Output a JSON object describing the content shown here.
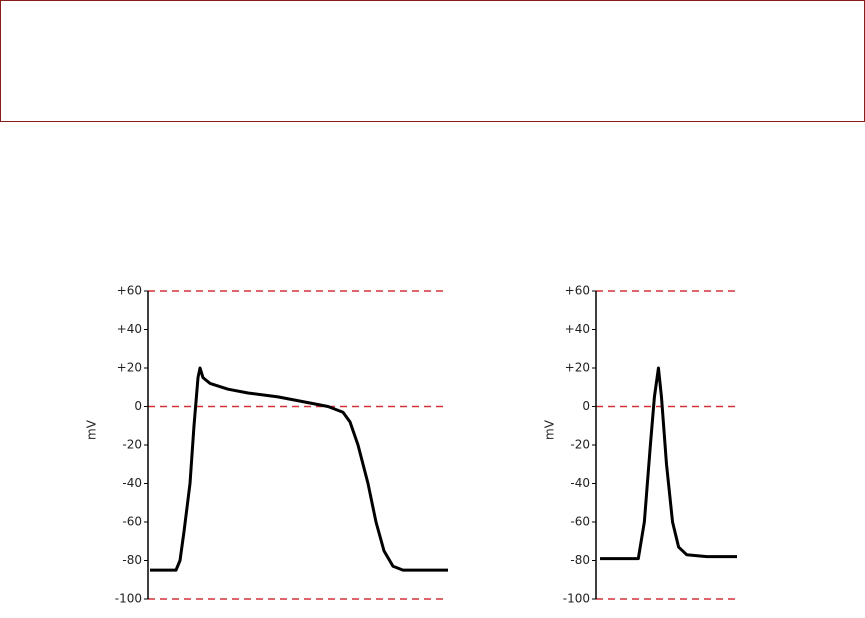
{
  "chart_data": [
    {
      "type": "line",
      "ylabel": "mV",
      "color": "#000000",
      "ref_color": "#d2323c",
      "xlim": [
        0,
        300
      ],
      "ylim": [
        -100,
        60
      ],
      "yticks": [
        {
          "value": 60,
          "label": "+60"
        },
        {
          "value": 40,
          "label": "+40"
        },
        {
          "value": 20,
          "label": "+20"
        },
        0,
        -20,
        -40,
        -60,
        -80,
        -100
      ],
      "ref_lines": [
        60,
        0,
        -100
      ],
      "x": [
        2,
        28,
        32,
        36,
        42,
        46,
        50,
        52,
        55,
        62,
        80,
        100,
        130,
        160,
        180,
        195,
        202,
        210,
        220,
        228,
        236,
        245,
        255,
        300
      ],
      "values": [
        -85,
        -85,
        -80,
        -65,
        -40,
        -10,
        15,
        20,
        15,
        12,
        9,
        7,
        5,
        2,
        0,
        -3,
        -8,
        -20,
        -40,
        -60,
        -75,
        -83,
        -85,
        -85
      ]
    },
    {
      "type": "line",
      "ylabel": "mV",
      "color": "#000000",
      "ref_color": "#d2323c",
      "xlim": [
        0,
        140
      ],
      "ylim": [
        -100,
        60
      ],
      "yticks": [
        {
          "value": 60,
          "label": "+60"
        },
        {
          "value": 40,
          "label": "+40"
        },
        {
          "value": 20,
          "label": "+20"
        },
        0,
        -20,
        -40,
        -60,
        -80,
        -100
      ],
      "ref_lines": [
        60,
        0,
        -100
      ],
      "x": [
        4,
        42,
        48,
        54,
        58,
        62,
        65,
        70,
        76,
        82,
        90,
        110,
        140
      ],
      "values": [
        -79,
        -79,
        -60,
        -20,
        5,
        20,
        5,
        -30,
        -60,
        -73,
        -77,
        -78,
        -78
      ]
    }
  ]
}
